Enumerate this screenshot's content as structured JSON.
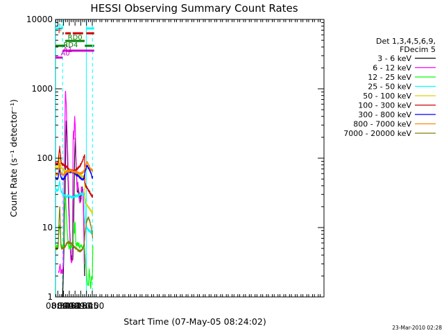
{
  "chart_data": {
    "type": "line",
    "title": "HESSI Observing Summary Count Rates",
    "xlabel": "Start Time (07-May-05 08:24:02)",
    "ylabel": "Count Rate (s⁻¹ detector⁻¹)",
    "x_unit": "minutes",
    "xlim": [
      504,
      1205
    ],
    "ylim": [
      1,
      10000
    ],
    "yscale": "log",
    "x_ticks": [
      {
        "label": "08:30",
        "value": 510
      },
      {
        "label": "08:45",
        "value": 525
      },
      {
        "label": "09:00",
        "value": 540
      },
      {
        "label": "09:15",
        "value": 555
      },
      {
        "label": "09:30",
        "value": 570
      },
      {
        "label": "09:45",
        "value": 585
      },
      {
        "label": "10:00",
        "value": 600
      }
    ],
    "y_ticks": [
      {
        "label": "1",
        "value": 1
      },
      {
        "label": "10",
        "value": 10
      },
      {
        "label": "100",
        "value": 100
      },
      {
        "label": "1000",
        "value": 1000
      },
      {
        "label": "10000",
        "value": 10000
      }
    ],
    "legend_header": [
      "Det 1,3,4,5,6,9,",
      "FDecim 5"
    ],
    "legend_position": "right",
    "series": [
      {
        "name": "3 - 6 keV",
        "color": "#000000",
        "x": [
          522.5,
          523.5,
          525,
          527,
          529,
          530.5,
          532,
          533.5,
          535,
          536.5,
          538,
          540,
          542,
          544,
          546,
          549,
          551,
          552.5,
          554,
          555.5,
          557,
          559,
          561,
          562.5,
          564,
          566,
          568,
          570,
          572,
          574,
          575.5,
          577,
          578,
          579,
          580
        ],
        "y": [
          1,
          1.5,
          3,
          8,
          30,
          120,
          350,
          250,
          130,
          60,
          25,
          12,
          7,
          4.5,
          3.5,
          3.5,
          10,
          40,
          100,
          190,
          110,
          55,
          32,
          40,
          35,
          30,
          28,
          24,
          34,
          38,
          33,
          20,
          12,
          7,
          2
        ]
      },
      {
        "name": "6 - 12 keV",
        "color": "#ff00ff",
        "x": [
          512,
          514,
          516,
          518,
          520,
          521.5,
          523,
          524.5,
          526,
          528,
          530,
          532,
          534,
          536,
          538,
          540,
          542,
          544,
          546,
          548,
          549,
          550,
          551,
          552,
          553,
          554,
          555.5,
          557,
          559,
          561,
          562.5,
          564,
          566,
          568,
          570,
          572,
          574,
          575.5,
          577,
          578,
          579
        ],
        "y": [
          2.2,
          2.5,
          3,
          2.2,
          2.4,
          2.2,
          2.5,
          3,
          30,
          200,
          950,
          600,
          250,
          110,
          40,
          15,
          6,
          3.5,
          3.2,
          3.5,
          40,
          180,
          240,
          190,
          260,
          400,
          300,
          120,
          55,
          35,
          45,
          30,
          25,
          22,
          30,
          38,
          36,
          30,
          18,
          8,
          3
        ]
      },
      {
        "name": "12 - 25 keV",
        "color": "#00ff00",
        "x": [
          504,
          508,
          511,
          513,
          515,
          516.5,
          518,
          520,
          522,
          524,
          526,
          528,
          530,
          532,
          534,
          536,
          538,
          540,
          542,
          544,
          546,
          548,
          549,
          550,
          551,
          552,
          553,
          554,
          555,
          556,
          557,
          559,
          561,
          563,
          565,
          567,
          569,
          572,
          575,
          578,
          580,
          582,
          584,
          586,
          588,
          590,
          592,
          594,
          596,
          598,
          600,
          601.5
        ],
        "y": [
          5.5,
          5.2,
          6,
          9,
          11,
          9,
          5.5,
          5,
          5.5,
          5,
          7,
          22,
          30,
          18,
          10,
          7,
          5.5,
          5,
          5.5,
          5,
          5.5,
          5.2,
          5.5,
          7,
          9,
          12,
          8,
          9,
          12,
          9,
          6,
          5.5,
          6,
          5.5,
          6,
          5,
          5.5,
          5.5,
          5,
          5.5,
          5,
          3.5,
          2.5,
          1.8,
          1.5,
          1.5,
          2.5,
          1.8,
          1.3,
          2,
          1.8,
          5.5
        ]
      },
      {
        "name": "25 - 50 keV",
        "color": "#00ffff",
        "x": [
          504,
          508,
          511,
          513,
          515,
          517,
          519,
          522,
          525,
          528,
          531,
          534,
          537,
          540,
          544,
          548,
          552,
          556,
          560,
          564,
          568,
          572,
          576,
          578,
          580,
          580.5,
          582,
          585,
          588,
          591,
          594,
          597,
          600,
          601
        ],
        "y": [
          35,
          34,
          35,
          40,
          47,
          38,
          33,
          32,
          30,
          29,
          28,
          28,
          29,
          28,
          28,
          27,
          28,
          29,
          28,
          29,
          30,
          31,
          30,
          30,
          31,
          25,
          12,
          10.5,
          9.5,
          9,
          9,
          8.5,
          8,
          9
        ]
      },
      {
        "name": "50 - 100 keV",
        "color": "#d5d500",
        "x": [
          504,
          508,
          511,
          513,
          515,
          517,
          519,
          522,
          525,
          528,
          531,
          534,
          537,
          540,
          544,
          548,
          552,
          556,
          560,
          564,
          568,
          572,
          576,
          578,
          580,
          580.5,
          583,
          586,
          589,
          592,
          595,
          598,
          600,
          601
        ],
        "y": [
          75,
          72,
          74,
          90,
          110,
          85,
          73,
          70,
          68,
          66,
          65,
          65,
          64,
          65,
          64,
          63,
          62,
          60,
          58,
          57,
          56,
          55,
          54,
          55,
          56,
          28,
          23,
          21,
          20,
          19,
          18,
          17,
          16,
          18
        ]
      },
      {
        "name": "100 - 300 keV",
        "color": "#d00000",
        "x": [
          504,
          508,
          511,
          513,
          515,
          517,
          519,
          522,
          525,
          528,
          531,
          534,
          537,
          540,
          544,
          548,
          552,
          556,
          560,
          564,
          568,
          572,
          576,
          578,
          580,
          580.5,
          583,
          586,
          589,
          592,
          595,
          598,
          600,
          601
        ],
        "y": [
          85,
          82,
          85,
          115,
          145,
          110,
          85,
          82,
          80,
          78,
          76,
          74,
          70,
          68,
          67,
          66,
          65,
          67,
          70,
          73,
          78,
          85,
          95,
          105,
          110,
          45,
          40,
          38,
          35,
          33,
          31,
          29,
          27,
          30
        ]
      },
      {
        "name": "300 - 800 keV",
        "color": "#0000ff",
        "x": [
          504,
          508,
          511,
          513,
          515,
          517,
          519,
          522,
          525,
          528,
          531,
          534,
          537,
          540,
          544,
          548,
          552,
          556,
          560,
          564,
          568,
          572,
          576,
          578,
          580,
          582,
          584,
          586,
          588,
          590,
          592,
          594,
          596,
          598,
          600,
          601
        ],
        "y": [
          52,
          50,
          52,
          60,
          70,
          58,
          52,
          50,
          50,
          52,
          56,
          60,
          63,
          64,
          65,
          63,
          62,
          60,
          58,
          55,
          52,
          50,
          50,
          52,
          58,
          65,
          72,
          78,
          76,
          72,
          70,
          66,
          62,
          58,
          52,
          55
        ]
      },
      {
        "name": "800 - 7000 keV",
        "color": "#ff8800",
        "x": [
          504,
          508,
          511,
          513,
          515,
          517,
          519,
          522,
          525,
          528,
          531,
          534,
          537,
          540,
          544,
          548,
          552,
          556,
          560,
          564,
          568,
          572,
          576,
          578,
          580,
          582,
          584,
          586,
          588,
          590,
          592,
          594,
          596,
          598,
          600,
          601
        ],
        "y": [
          60,
          58,
          60,
          72,
          85,
          68,
          60,
          58,
          58,
          60,
          62,
          64,
          65,
          66,
          66,
          65,
          64,
          63,
          62,
          61,
          60,
          61,
          63,
          66,
          70,
          76,
          82,
          88,
          86,
          80,
          76,
          72,
          70,
          68,
          66,
          67
        ]
      },
      {
        "name": "7000 - 20000 keV",
        "color": "#808000",
        "x": [
          504,
          508,
          511,
          513,
          515,
          516.5,
          518,
          520,
          523,
          526,
          530,
          534,
          538,
          542,
          546,
          550,
          554,
          558,
          562,
          566,
          570,
          574,
          578,
          580,
          582,
          584,
          586,
          588,
          590,
          592,
          594,
          596,
          598,
          600,
          601
        ],
        "y": [
          5,
          4.9,
          5.2,
          12,
          20,
          12,
          6,
          5,
          5,
          5.2,
          5.5,
          6,
          6.2,
          6,
          5.8,
          5.5,
          5.2,
          5,
          4.8,
          4.6,
          4.6,
          4.8,
          5.5,
          7,
          9,
          11,
          12.5,
          13.5,
          14,
          13,
          12,
          11,
          9.5,
          8,
          7
        ]
      }
    ],
    "flags": [
      {
        "name": "N",
        "color": "#00ffff",
        "segments": [
          [
            504,
            522
          ],
          [
            584.5,
            605
          ]
        ]
      },
      {
        "name": "F",
        "color": "#d00000",
        "segments": [
          [
            523,
            525.5
          ],
          [
            529.5,
            544
          ],
          [
            549,
            576
          ],
          [
            584.5,
            605
          ]
        ]
      },
      {
        "name": "RD0",
        "color": "#008000",
        "segments": [
          [
            529.5,
            580
          ]
        ]
      },
      {
        "name": "RD4",
        "color": "#008000",
        "segments": [
          [
            504,
            529
          ],
          [
            531,
            534
          ],
          [
            580.5,
            600
          ],
          [
            602,
            605
          ]
        ]
      },
      {
        "name": "A0",
        "color": "#cc00cc",
        "segments": [
          [
            504,
            522.5
          ]
        ]
      },
      {
        "name": "A1",
        "color": "#cc00cc",
        "segments": [
          [
            522.5,
            605
          ]
        ]
      }
    ],
    "vlines": [
      {
        "x": 504.5,
        "style": "solid",
        "color": "#00ffff"
      },
      {
        "x": 522.5,
        "style": "dashed",
        "color": "#00ffff"
      },
      {
        "x": 584.5,
        "style": "solid",
        "color": "#00ffff"
      },
      {
        "x": 600.5,
        "style": "dashed",
        "color": "#00ffff"
      }
    ]
  },
  "timestamp": "23-Mar-2010 02:28"
}
